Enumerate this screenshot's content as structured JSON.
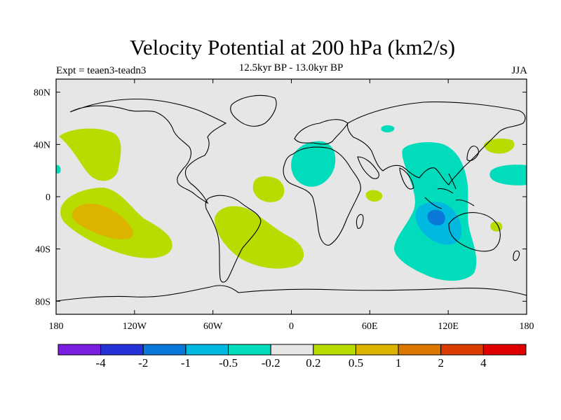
{
  "title": "Velocity Potential at 200 hPa (km2/s)",
  "subtitle": "12.5kyr BP - 13.0kyr BP",
  "experiment": "Expt = teaen3-teadn3",
  "season": "JJA",
  "map": {
    "lon_range": [
      -180,
      180
    ],
    "lat_range": [
      -90,
      90
    ],
    "background_color": "#e6e6e6",
    "x_ticks": [
      {
        "lon": -180,
        "label": "180"
      },
      {
        "lon": -120,
        "label": "120W"
      },
      {
        "lon": -60,
        "label": "60W"
      },
      {
        "lon": 0,
        "label": "0"
      },
      {
        "lon": 60,
        "label": "60E"
      },
      {
        "lon": 120,
        "label": "120E"
      },
      {
        "lon": 180,
        "label": "180"
      }
    ],
    "y_ticks": [
      {
        "lat": 80,
        "label": "80N"
      },
      {
        "lat": 40,
        "label": "40N"
      },
      {
        "lat": 0,
        "label": "0"
      },
      {
        "lat": -40,
        "label": "40S"
      },
      {
        "lat": -80,
        "label": "80S"
      }
    ]
  },
  "colorbar": {
    "colors": [
      "#7a1fe0",
      "#2432d8",
      "#0a78d8",
      "#00b8e0",
      "#00dcbc",
      "#e6e6e6",
      "#b8dc00",
      "#dcb400",
      "#dc7800",
      "#dc3c00",
      "#e00000"
    ],
    "labels": [
      "-4",
      "-2",
      "-1",
      "-0.5",
      "-0.2",
      "0.2",
      "0.5",
      "1",
      "2",
      "4"
    ]
  }
}
